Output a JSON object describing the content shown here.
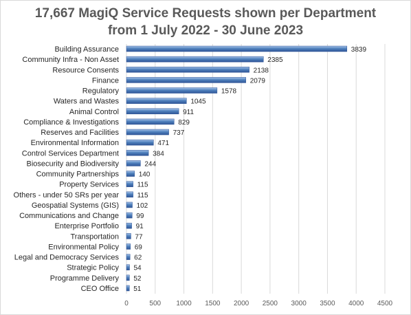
{
  "chart_data": {
    "type": "bar",
    "orientation": "horizontal",
    "title_lines": [
      "17,667 MagiQ Service Requests shown per Department",
      "from 1 July 2022 - 30 June 2023"
    ],
    "categories": [
      "Building Assurance",
      "Community Infra - Non Asset",
      "Resource Consents",
      "Finance",
      "Regulatory",
      "Waters and Wastes",
      "Animal Control",
      "Compliance & Investigations",
      "Reserves and Facilities",
      "Environmental Information",
      "Control Services Department",
      "Biosecurity and Biodiversity",
      "Community Partnerships",
      "Property Services",
      "Others - under 50 SRs per year",
      "Geospatial Systems (GIS)",
      "Communications and Change",
      "Enterprise Portfolio",
      "Transportation",
      "Environmental Policy",
      "Legal and Democracy Services",
      "Strategic Policy",
      "Programme Delivery",
      "CEO Office"
    ],
    "values": [
      3839,
      2385,
      2138,
      2079,
      1578,
      1045,
      911,
      829,
      737,
      471,
      384,
      244,
      140,
      115,
      115,
      102,
      99,
      91,
      77,
      69,
      62,
      54,
      52,
      51
    ],
    "value_labels": [
      "3839",
      "2385",
      "2138",
      "2079",
      "1578",
      "1045",
      "911",
      "829",
      "737",
      "471",
      "384",
      "244",
      "140",
      "115",
      "115",
      "102",
      "99",
      "91",
      "77",
      "69",
      "62",
      "54",
      "52",
      "51"
    ],
    "xlim": [
      0,
      4500
    ],
    "x_ticks": [
      0,
      500,
      1000,
      1500,
      2000,
      2500,
      3000,
      3500,
      4000,
      4500
    ],
    "x_tick_labels": [
      "0",
      "500",
      "1000",
      "1500",
      "2000",
      "2500",
      "3000",
      "3500",
      "4000",
      "4500"
    ],
    "grid": true,
    "legend": "none",
    "colors": {
      "bar_light": "#a9c4ea",
      "bar_mid": "#4f81bd",
      "bar_dark": "#2f5597",
      "grid": "#d9d9d9",
      "title": "#595959",
      "text": "#262626"
    }
  }
}
